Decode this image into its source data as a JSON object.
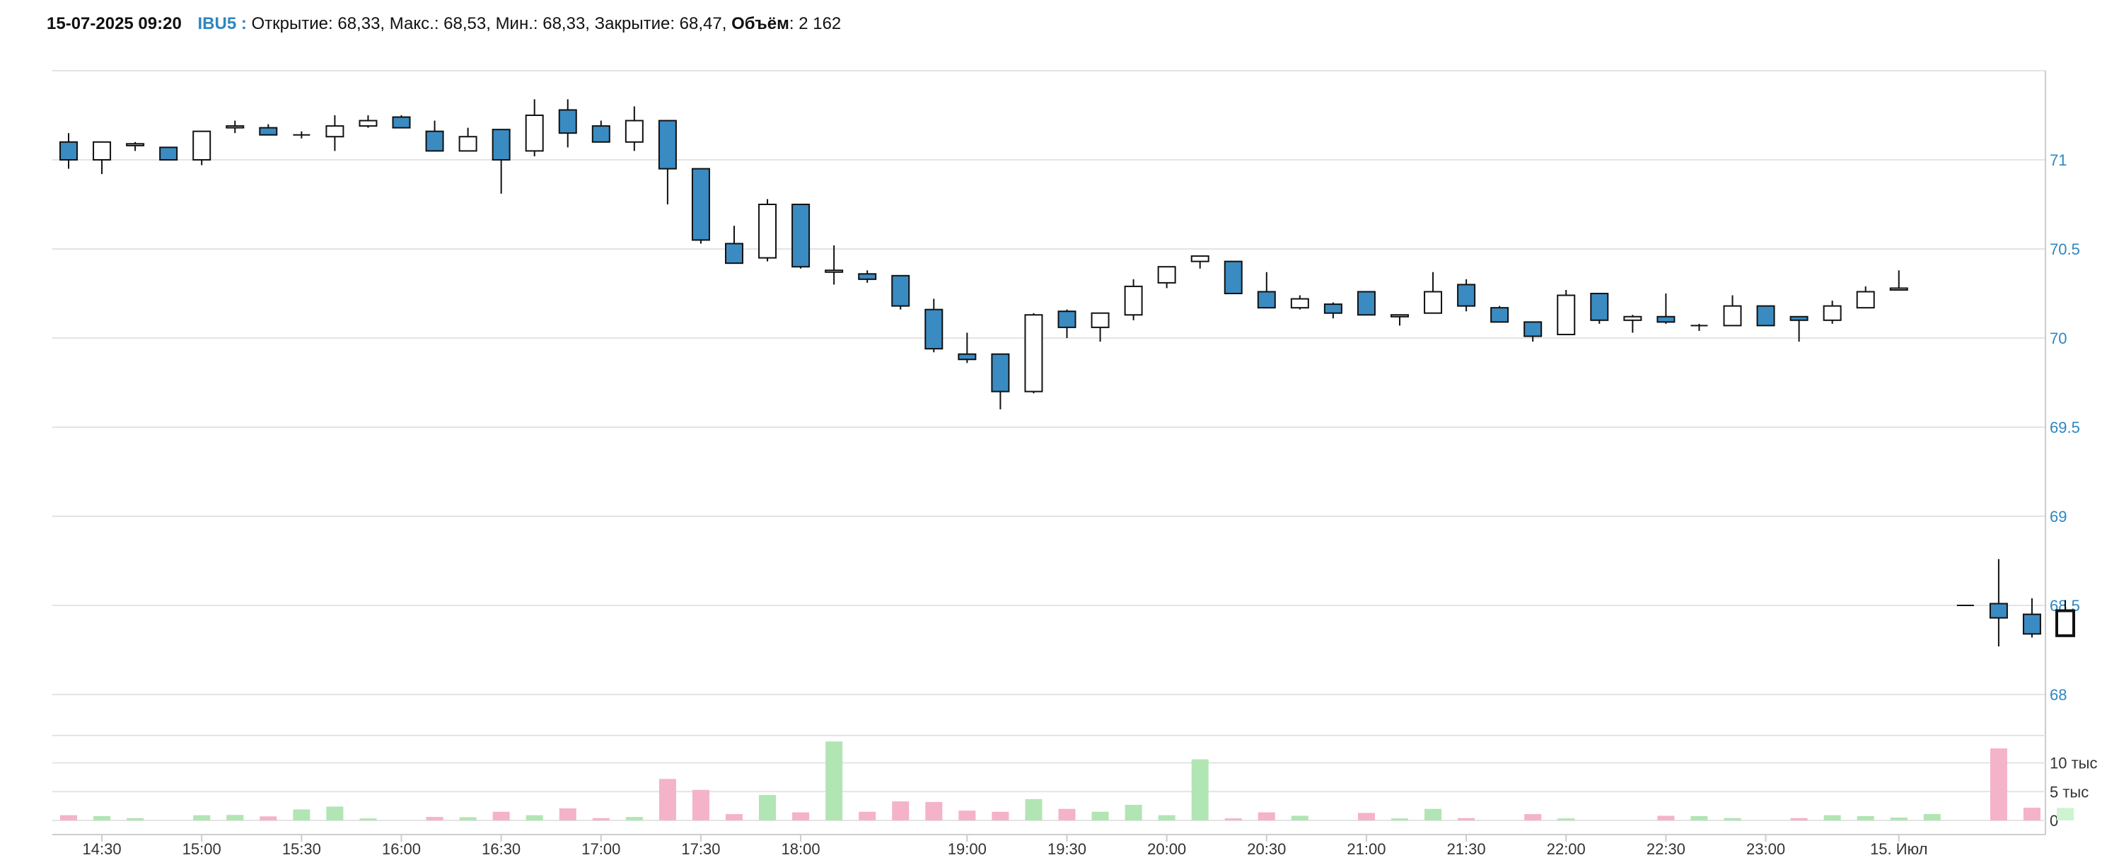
{
  "header": {
    "timestamp": "15-07-2025 09:20",
    "symbol": "IBU5 :",
    "open_label": "Открытие:",
    "open_value": "68,33",
    "high_label": "Макс.:",
    "high_value": "68,53",
    "low_label": "Мин.:",
    "low_value": "68,33",
    "close_label": "Закрытие:",
    "close_value": "68,47",
    "volume_label": "Объём",
    "volume_value": "2 162"
  },
  "colors": {
    "up_fill": "#ffffff",
    "down_fill": "#3a8bc2",
    "candle_stroke": "#111111",
    "volume_up": "#b1e5b3",
    "volume_down": "#f4b3c8",
    "volume_last": "#cdf3cf",
    "grid": "#e4e4e4",
    "axis_label": "#2e86c1",
    "symbol": "#2e86c1"
  },
  "chart_data": {
    "type": "candlestick",
    "price_axis": {
      "min": 68,
      "max": 71.5,
      "ticks": [
        68,
        68.5,
        69,
        69.5,
        70,
        70.5,
        71
      ],
      "tick_labels": [
        "68",
        "68.5",
        "69",
        "69.5",
        "70",
        "70.5",
        "71"
      ]
    },
    "volume_axis": {
      "min": 0,
      "max": 14000,
      "ticks": [
        0,
        5000,
        10000
      ],
      "tick_labels": [
        "0",
        "5 тыс",
        "10 тыс"
      ]
    },
    "x_ticks": [
      {
        "label": "14:30",
        "index": 1
      },
      {
        "label": "15:00",
        "index": 4
      },
      {
        "label": "15:30",
        "index": 7
      },
      {
        "label": "16:00",
        "index": 10
      },
      {
        "label": "16:30",
        "index": 13
      },
      {
        "label": "17:00",
        "index": 16
      },
      {
        "label": "17:30",
        "index": 19
      },
      {
        "label": "18:00",
        "index": 22
      },
      {
        "label": "19:00",
        "index": 27
      },
      {
        "label": "19:30",
        "index": 30
      },
      {
        "label": "20:00",
        "index": 33
      },
      {
        "label": "20:30",
        "index": 36
      },
      {
        "label": "21:00",
        "index": 39
      },
      {
        "label": "21:30",
        "index": 42
      },
      {
        "label": "22:00",
        "index": 45
      },
      {
        "label": "22:30",
        "index": 48
      },
      {
        "label": "23:00",
        "index": 51
      },
      {
        "label": "15. Июл",
        "index": 55
      }
    ],
    "candles": [
      {
        "o": 71.1,
        "h": 71.15,
        "l": 70.95,
        "c": 71.0,
        "v": 900
      },
      {
        "o": 71.0,
        "h": 71.1,
        "l": 70.92,
        "c": 71.1,
        "v": 750
      },
      {
        "o": 71.08,
        "h": 71.1,
        "l": 71.05,
        "c": 71.09,
        "v": 400
      },
      {
        "o": 71.07,
        "h": 71.07,
        "l": 71.0,
        "c": 71.0,
        "v": null
      },
      {
        "o": 71.0,
        "h": 71.16,
        "l": 70.97,
        "c": 71.16,
        "v": 900
      },
      {
        "o": 71.18,
        "h": 71.22,
        "l": 71.15,
        "c": 71.19,
        "v": 950
      },
      {
        "o": 71.18,
        "h": 71.2,
        "l": 71.14,
        "c": 71.14,
        "v": 700
      },
      {
        "o": 71.14,
        "h": 71.16,
        "l": 71.12,
        "c": 71.14,
        "v": 1900
      },
      {
        "o": 71.13,
        "h": 71.25,
        "l": 71.05,
        "c": 71.19,
        "v": 2400
      },
      {
        "o": 71.19,
        "h": 71.25,
        "l": 71.18,
        "c": 71.22,
        "v": 350
      },
      {
        "o": 71.24,
        "h": 71.25,
        "l": 71.18,
        "c": 71.18,
        "v": null
      },
      {
        "o": 71.16,
        "h": 71.22,
        "l": 71.05,
        "c": 71.05,
        "v": 600
      },
      {
        "o": 71.05,
        "h": 71.18,
        "l": 71.05,
        "c": 71.13,
        "v": 550
      },
      {
        "o": 71.17,
        "h": 71.17,
        "l": 70.81,
        "c": 71.0,
        "v": 1500
      },
      {
        "o": 71.05,
        "h": 71.34,
        "l": 71.02,
        "c": 71.25,
        "v": 900
      },
      {
        "o": 71.28,
        "h": 71.34,
        "l": 71.07,
        "c": 71.15,
        "v": 2100
      },
      {
        "o": 71.19,
        "h": 71.22,
        "l": 71.1,
        "c": 71.1,
        "v": 400
      },
      {
        "o": 71.1,
        "h": 71.3,
        "l": 71.05,
        "c": 71.22,
        "v": 600
      },
      {
        "o": 71.22,
        "h": 71.22,
        "l": 70.75,
        "c": 70.95,
        "v": 7200
      },
      {
        "o": 70.95,
        "h": 70.95,
        "l": 70.53,
        "c": 70.55,
        "v": 5300
      },
      {
        "o": 70.53,
        "h": 70.63,
        "l": 70.42,
        "c": 70.42,
        "v": 1100
      },
      {
        "o": 70.45,
        "h": 70.78,
        "l": 70.43,
        "c": 70.75,
        "v": 4400
      },
      {
        "o": 70.75,
        "h": 70.75,
        "l": 70.39,
        "c": 70.4,
        "v": 1400
      },
      {
        "o": 70.37,
        "h": 70.52,
        "l": 70.3,
        "c": 70.38,
        "v": 13700
      },
      {
        "o": 70.36,
        "h": 70.38,
        "l": 70.31,
        "c": 70.33,
        "v": 1500
      },
      {
        "o": 70.35,
        "h": 70.35,
        "l": 70.16,
        "c": 70.18,
        "v": 3300
      },
      {
        "o": 70.16,
        "h": 70.22,
        "l": 69.92,
        "c": 69.94,
        "v": 3200
      },
      {
        "o": 69.91,
        "h": 70.03,
        "l": 69.86,
        "c": 69.88,
        "v": 1700
      },
      {
        "o": 69.91,
        "h": 69.91,
        "l": 69.6,
        "c": 69.7,
        "v": 1500
      },
      {
        "o": 69.7,
        "h": 70.14,
        "l": 69.69,
        "c": 70.13,
        "v": 3700
      },
      {
        "o": 70.15,
        "h": 70.16,
        "l": 70.0,
        "c": 70.06,
        "v": 2000
      },
      {
        "o": 70.06,
        "h": 70.14,
        "l": 69.98,
        "c": 70.14,
        "v": 1500
      },
      {
        "o": 70.13,
        "h": 70.33,
        "l": 70.1,
        "c": 70.29,
        "v": 2700
      },
      {
        "o": 70.31,
        "h": 70.4,
        "l": 70.28,
        "c": 70.4,
        "v": 900
      },
      {
        "o": 70.43,
        "h": 70.46,
        "l": 70.39,
        "c": 70.46,
        "v": 10600
      },
      {
        "o": 70.43,
        "h": 70.43,
        "l": 70.25,
        "c": 70.25,
        "v": 350
      },
      {
        "o": 70.26,
        "h": 70.37,
        "l": 70.17,
        "c": 70.17,
        "v": 1400
      },
      {
        "o": 70.17,
        "h": 70.24,
        "l": 70.16,
        "c": 70.22,
        "v": 800
      },
      {
        "o": 70.19,
        "h": 70.2,
        "l": 70.11,
        "c": 70.14,
        "v": null
      },
      {
        "o": 70.26,
        "h": 70.26,
        "l": 70.13,
        "c": 70.13,
        "v": 1300
      },
      {
        "o": 70.12,
        "h": 70.13,
        "l": 70.07,
        "c": 70.13,
        "v": 350
      },
      {
        "o": 70.14,
        "h": 70.37,
        "l": 70.14,
        "c": 70.26,
        "v": 2000
      },
      {
        "o": 70.3,
        "h": 70.33,
        "l": 70.15,
        "c": 70.18,
        "v": 400
      },
      {
        "o": 70.17,
        "h": 70.18,
        "l": 70.09,
        "c": 70.09,
        "v": null
      },
      {
        "o": 70.09,
        "h": 70.09,
        "l": 69.98,
        "c": 70.01,
        "v": 1100
      },
      {
        "o": 70.02,
        "h": 70.27,
        "l": 70.02,
        "c": 70.24,
        "v": 350
      },
      {
        "o": 70.25,
        "h": 70.25,
        "l": 70.08,
        "c": 70.1,
        "v": null
      },
      {
        "o": 70.1,
        "h": 70.13,
        "l": 70.03,
        "c": 70.12,
        "v": null
      },
      {
        "o": 70.12,
        "h": 70.25,
        "l": 70.08,
        "c": 70.09,
        "v": 800
      },
      {
        "o": 70.07,
        "h": 70.08,
        "l": 70.04,
        "c": 70.07,
        "v": 750
      },
      {
        "o": 70.07,
        "h": 70.24,
        "l": 70.07,
        "c": 70.18,
        "v": 400
      },
      {
        "o": 70.18,
        "h": 70.18,
        "l": 70.07,
        "c": 70.07,
        "v": null
      },
      {
        "o": 70.12,
        "h": 70.12,
        "l": 69.98,
        "c": 70.1,
        "v": 400
      },
      {
        "o": 70.1,
        "h": 70.21,
        "l": 70.08,
        "c": 70.18,
        "v": 900
      },
      {
        "o": 70.17,
        "h": 70.29,
        "l": 70.17,
        "c": 70.26,
        "v": 750
      },
      {
        "o": 70.27,
        "h": 70.38,
        "l": 70.27,
        "c": 70.28,
        "v": 500
      },
      {
        "o": null,
        "h": null,
        "l": null,
        "c": null,
        "v": 1100
      },
      {
        "o": 68.5,
        "h": 68.5,
        "l": 68.5,
        "c": 68.5,
        "v": null
      },
      {
        "o": 68.51,
        "h": 68.76,
        "l": 68.27,
        "c": 68.43,
        "v": 12500
      },
      {
        "o": 68.45,
        "h": 68.54,
        "l": 68.32,
        "c": 68.34,
        "v": 2200
      },
      {
        "o": 68.33,
        "h": 68.53,
        "l": 68.33,
        "c": 68.47,
        "v": 2162
      }
    ]
  }
}
